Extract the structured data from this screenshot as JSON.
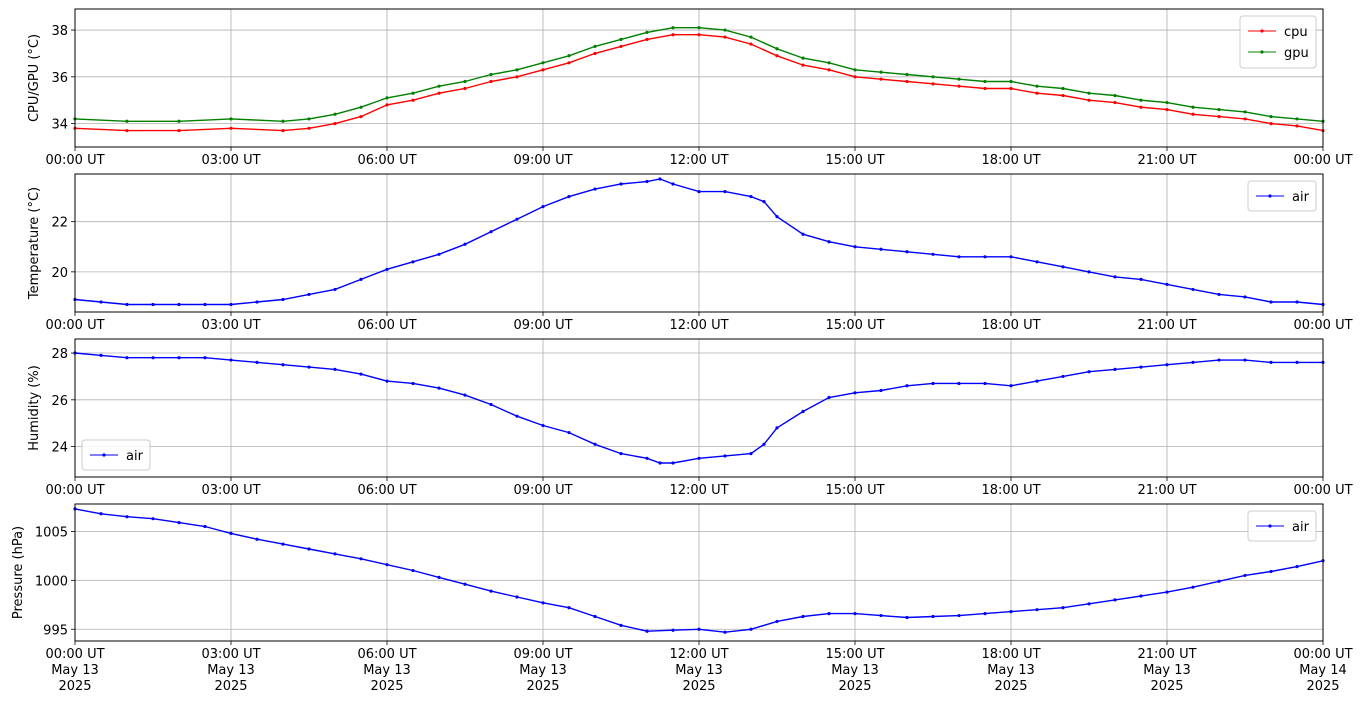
{
  "x_ticks": [
    "00:00 UT",
    "03:00 UT",
    "06:00 UT",
    "09:00 UT",
    "12:00 UT",
    "15:00 UT",
    "18:00 UT",
    "21:00 UT",
    "00:00 UT"
  ],
  "x_ticks_dated": [
    "00:00 UT\nMay 13\n2025",
    "03:00 UT\nMay 13\n2025",
    "06:00 UT\nMay 13\n2025",
    "09:00 UT\nMay 13\n2025",
    "12:00 UT\nMay 13\n2025",
    "15:00 UT\nMay 13\n2025",
    "18:00 UT\nMay 13\n2025",
    "21:00 UT\nMay 13\n2025",
    "00:00 UT\nMay 14\n2025"
  ],
  "colors": {
    "cpu": "#ff0000",
    "gpu": "#008000",
    "air": "#0000ff",
    "grid": "#b0b0b0"
  },
  "chart_data": [
    {
      "type": "line",
      "ylabel": "CPU/GPU (°C)",
      "xlim": [
        0,
        24
      ],
      "ylim": [
        33.0,
        38.9
      ],
      "yticks": [
        34,
        36,
        38
      ],
      "grid": true,
      "legend": "top-right",
      "series": [
        {
          "name": "cpu",
          "x": [
            0,
            1,
            2,
            3,
            4,
            4.5,
            5,
            5.5,
            6,
            6.5,
            7,
            7.5,
            8,
            8.5,
            9,
            9.5,
            10,
            10.5,
            11,
            11.5,
            12,
            12.5,
            13,
            13.5,
            14,
            14.5,
            15,
            15.5,
            16,
            16.5,
            17,
            17.5,
            18,
            18.5,
            19,
            19.5,
            20,
            20.5,
            21,
            21.5,
            22,
            22.5,
            23,
            23.5,
            24
          ],
          "values": [
            33.8,
            33.7,
            33.7,
            33.8,
            33.7,
            33.8,
            34.0,
            34.3,
            34.8,
            35.0,
            35.3,
            35.5,
            35.8,
            36.0,
            36.3,
            36.6,
            37.0,
            37.3,
            37.6,
            37.8,
            37.8,
            37.7,
            37.4,
            36.9,
            36.5,
            36.3,
            36.0,
            35.9,
            35.8,
            35.7,
            35.6,
            35.5,
            35.5,
            35.3,
            35.2,
            35.0,
            34.9,
            34.7,
            34.6,
            34.4,
            34.3,
            34.2,
            34.0,
            33.9,
            33.7
          ]
        },
        {
          "name": "gpu",
          "x": [
            0,
            1,
            2,
            3,
            4,
            4.5,
            5,
            5.5,
            6,
            6.5,
            7,
            7.5,
            8,
            8.5,
            9,
            9.5,
            10,
            10.5,
            11,
            11.5,
            12,
            12.5,
            13,
            13.5,
            14,
            14.5,
            15,
            15.5,
            16,
            16.5,
            17,
            17.5,
            18,
            18.5,
            19,
            19.5,
            20,
            20.5,
            21,
            21.5,
            22,
            22.5,
            23,
            23.5,
            24
          ],
          "values": [
            34.2,
            34.1,
            34.1,
            34.2,
            34.1,
            34.2,
            34.4,
            34.7,
            35.1,
            35.3,
            35.6,
            35.8,
            36.1,
            36.3,
            36.6,
            36.9,
            37.3,
            37.6,
            37.9,
            38.1,
            38.1,
            38.0,
            37.7,
            37.2,
            36.8,
            36.6,
            36.3,
            36.2,
            36.1,
            36.0,
            35.9,
            35.8,
            35.8,
            35.6,
            35.5,
            35.3,
            35.2,
            35.0,
            34.9,
            34.7,
            34.6,
            34.5,
            34.3,
            34.2,
            34.1
          ]
        }
      ]
    },
    {
      "type": "line",
      "ylabel": "Temperature (°C)",
      "xlim": [
        0,
        24
      ],
      "ylim": [
        18.4,
        23.9
      ],
      "yticks": [
        20,
        22
      ],
      "grid": true,
      "legend": "top-right",
      "series": [
        {
          "name": "air",
          "x": [
            0,
            0.5,
            1,
            1.5,
            2,
            2.5,
            3,
            3.5,
            4,
            4.5,
            5,
            5.5,
            6,
            6.5,
            7,
            7.5,
            8,
            8.5,
            9,
            9.5,
            10,
            10.5,
            11,
            11.25,
            11.5,
            12,
            12.5,
            13,
            13.25,
            13.5,
            14,
            14.5,
            15,
            15.5,
            16,
            16.5,
            17,
            17.5,
            18,
            18.5,
            19,
            19.5,
            20,
            20.5,
            21,
            21.5,
            22,
            22.5,
            23,
            23.5,
            24
          ],
          "values": [
            18.9,
            18.8,
            18.7,
            18.7,
            18.7,
            18.7,
            18.7,
            18.8,
            18.9,
            19.1,
            19.3,
            19.7,
            20.1,
            20.4,
            20.7,
            21.1,
            21.6,
            22.1,
            22.6,
            23.0,
            23.3,
            23.5,
            23.6,
            23.7,
            23.5,
            23.2,
            23.2,
            23.0,
            22.8,
            22.2,
            21.5,
            21.2,
            21.0,
            20.9,
            20.8,
            20.7,
            20.6,
            20.6,
            20.6,
            20.4,
            20.2,
            20.0,
            19.8,
            19.7,
            19.5,
            19.3,
            19.1,
            19.0,
            18.8,
            18.8,
            18.7
          ]
        }
      ]
    },
    {
      "type": "line",
      "ylabel": "Humidity (%)",
      "xlim": [
        0,
        24
      ],
      "ylim": [
        22.7,
        28.6
      ],
      "yticks": [
        24,
        26,
        28
      ],
      "grid": true,
      "legend": "bottom-left",
      "series": [
        {
          "name": "air",
          "x": [
            0,
            0.5,
            1,
            1.5,
            2,
            2.5,
            3,
            3.5,
            4,
            4.5,
            5,
            5.5,
            6,
            6.5,
            7,
            7.5,
            8,
            8.5,
            9,
            9.5,
            10,
            10.5,
            11,
            11.25,
            11.5,
            12,
            12.5,
            13,
            13.25,
            13.5,
            14,
            14.5,
            15,
            15.5,
            16,
            16.5,
            17,
            17.5,
            18,
            18.5,
            19,
            19.5,
            20,
            20.5,
            21,
            21.5,
            22,
            22.5,
            23,
            23.5,
            24
          ],
          "values": [
            28.0,
            27.9,
            27.8,
            27.8,
            27.8,
            27.8,
            27.7,
            27.6,
            27.5,
            27.4,
            27.3,
            27.1,
            26.8,
            26.7,
            26.5,
            26.2,
            25.8,
            25.3,
            24.9,
            24.6,
            24.1,
            23.7,
            23.5,
            23.3,
            23.3,
            23.5,
            23.6,
            23.7,
            24.1,
            24.8,
            25.5,
            26.1,
            26.3,
            26.4,
            26.6,
            26.7,
            26.7,
            26.7,
            26.6,
            26.8,
            27.0,
            27.2,
            27.3,
            27.4,
            27.5,
            27.6,
            27.7,
            27.7,
            27.6,
            27.6,
            27.6
          ]
        }
      ]
    },
    {
      "type": "line",
      "ylabel": "Pressure (hPa)",
      "xlim": [
        0,
        24
      ],
      "ylim": [
        993.8,
        1007.8
      ],
      "yticks": [
        995,
        1000,
        1005
      ],
      "grid": true,
      "legend": "top-right",
      "series": [
        {
          "name": "air",
          "x": [
            0,
            0.5,
            1,
            1.5,
            2,
            2.5,
            3,
            3.5,
            4,
            4.5,
            5,
            5.5,
            6,
            6.5,
            7,
            7.5,
            8,
            8.5,
            9,
            9.5,
            10,
            10.5,
            11,
            11.5,
            12,
            12.5,
            13,
            13.5,
            14,
            14.5,
            15,
            15.5,
            16,
            16.5,
            17,
            17.5,
            18,
            18.5,
            19,
            19.5,
            20,
            20.5,
            21,
            21.5,
            22,
            22.5,
            23,
            23.5,
            24
          ],
          "values": [
            1007.3,
            1006.8,
            1006.5,
            1006.3,
            1005.9,
            1005.5,
            1004.8,
            1004.2,
            1003.7,
            1003.2,
            1002.7,
            1002.2,
            1001.6,
            1001.0,
            1000.3,
            999.6,
            998.9,
            998.3,
            997.7,
            997.2,
            996.3,
            995.4,
            994.8,
            994.9,
            995.0,
            994.7,
            995.0,
            995.8,
            996.3,
            996.6,
            996.6,
            996.4,
            996.2,
            996.3,
            996.4,
            996.6,
            996.8,
            997.0,
            997.2,
            997.6,
            998.0,
            998.4,
            998.8,
            999.3,
            999.9,
            1000.5,
            1000.9,
            1001.4,
            1002.0
          ]
        }
      ]
    }
  ]
}
